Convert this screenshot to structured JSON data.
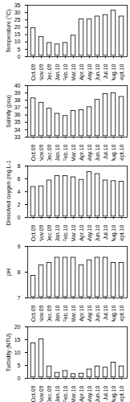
{
  "chart_data": [
    {
      "type": "bar",
      "y_label": "Temperature (°C)",
      "categories": [
        "Oct.09",
        "Nov.09",
        "Dec.09",
        "Jan.10",
        "Feb.10",
        "Mar.10",
        "Apr.10",
        "May.10",
        "Jun.10",
        "Jul.10",
        "Aug.10",
        "Sept.10"
      ],
      "values": [
        20,
        14,
        10,
        9,
        10,
        15,
        26,
        26,
        28,
        29,
        32,
        28
      ],
      "color": "#ffffff",
      "ylim": [
        0,
        35
      ],
      "yticks": [
        0,
        5,
        10,
        15,
        20,
        25,
        30,
        35
      ]
    },
    {
      "type": "bar",
      "y_label": "Salinity (psu)",
      "categories": [
        "Oct.09",
        "Nov.09",
        "Dec.09",
        "Jan.10",
        "Feb.10",
        "Mar.10",
        "Apr.10",
        "May.10",
        "Jun.10",
        "Jul.10",
        "Aug.10",
        "Sept.10"
      ],
      "values": [
        38.4,
        37.8,
        37,
        36.3,
        36,
        36.7,
        36.8,
        37.2,
        38.2,
        39,
        39.1,
        38.6
      ],
      "color": "#ffffff",
      "ylim": [
        33,
        40
      ],
      "yticks": [
        33,
        34,
        35,
        36,
        37,
        38,
        39,
        40
      ]
    },
    {
      "type": "bar",
      "y_label": "Dissolved oxygen (mg.L-1)",
      "categories": [
        "Oct.09",
        "Nov.09",
        "Dec.09",
        "Jan.10",
        "Feb.10",
        "Mar.10",
        "Apr.10",
        "May.10",
        "Jun.10",
        "Jul.10",
        "Aug.10",
        "Sept.10"
      ],
      "values": [
        4.9,
        5,
        5.9,
        6.6,
        6.6,
        6.4,
        6,
        7.2,
        6.9,
        5.9,
        5.8,
        5.7
      ],
      "color": "#ffffff",
      "ylim": [
        0,
        8
      ],
      "yticks": [
        0,
        2,
        4,
        6,
        8
      ]
    },
    {
      "type": "bar",
      "y_label": "pH",
      "categories": [
        "Oct.09",
        "Nov.09",
        "Dec.09",
        "Jan.10",
        "Feb.10",
        "Mar.10",
        "Apr.10",
        "May.10",
        "Jun.10",
        "Jul.10",
        "Aug.10",
        "Sept.10"
      ],
      "values": [
        7.9,
        8.3,
        8.4,
        8.6,
        8.6,
        8.6,
        8.3,
        8.5,
        8.6,
        8.6,
        8.4,
        8.4
      ],
      "color": "#ffffff",
      "ylim": [
        7,
        9
      ],
      "yticks": [
        7,
        8,
        9
      ]
    },
    {
      "type": "bar",
      "y_label": "Turbidity (NTU)",
      "categories": [
        "Oct.09",
        "Nov.09",
        "Dec.09",
        "Jan.10",
        "Feb.10",
        "Mar.10",
        "Apr.10",
        "May.10",
        "Jun.10",
        "Jul.10",
        "Aug.10",
        "Sept.10"
      ],
      "values": [
        14,
        15.5,
        5,
        2.5,
        3.2,
        2,
        2.2,
        3.8,
        5,
        4.5,
        6.5,
        5
      ],
      "color": "#ffffff",
      "ylim": [
        0,
        20
      ],
      "yticks": [
        0,
        5,
        10,
        15,
        20
      ]
    }
  ]
}
